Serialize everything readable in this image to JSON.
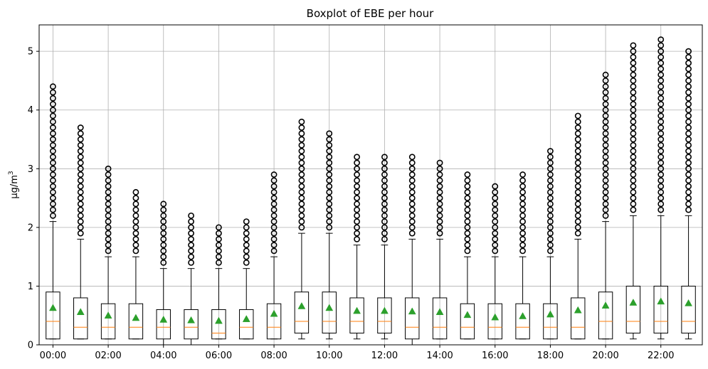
{
  "chart_data": {
    "type": "boxplot",
    "title": "Boxplot of EBE per hour",
    "ylabel_main": "µg/m",
    "ylabel_sup": "3",
    "ylim": [
      0,
      5.45
    ],
    "yticks": [
      0,
      1,
      2,
      3,
      4,
      5
    ],
    "grid": true,
    "colors": {
      "box": "#000000",
      "median": "#ff7f0e",
      "mean": "#2ca02c",
      "grid": "#b0b0b0",
      "flier": "#000000"
    },
    "categories": [
      "00:00",
      "01:00",
      "02:00",
      "03:00",
      "04:00",
      "05:00",
      "06:00",
      "07:00",
      "08:00",
      "09:00",
      "10:00",
      "11:00",
      "12:00",
      "13:00",
      "14:00",
      "15:00",
      "16:00",
      "17:00",
      "18:00",
      "19:00",
      "20:00",
      "21:00",
      "22:00",
      "23:00"
    ],
    "xtick_labels": [
      "00:00",
      "02:00",
      "04:00",
      "06:00",
      "08:00",
      "10:00",
      "12:00",
      "14:00",
      "16:00",
      "18:00",
      "20:00",
      "22:00"
    ],
    "xtick_indices": [
      0,
      2,
      4,
      6,
      8,
      10,
      12,
      14,
      16,
      18,
      20,
      22
    ],
    "boxes": [
      {
        "whislo": 0.1,
        "q1": 0.1,
        "med": 0.4,
        "q3": 0.9,
        "whishi": 2.1,
        "mean": 0.63,
        "flier_min": 2.2,
        "flier_max": 4.4
      },
      {
        "whislo": 0.1,
        "q1": 0.1,
        "med": 0.3,
        "q3": 0.8,
        "whishi": 1.8,
        "mean": 0.56,
        "flier_min": 1.9,
        "flier_max": 3.7
      },
      {
        "whislo": 0.1,
        "q1": 0.1,
        "med": 0.3,
        "q3": 0.7,
        "whishi": 1.5,
        "mean": 0.5,
        "flier_min": 1.6,
        "flier_max": 3.0
      },
      {
        "whislo": 0.1,
        "q1": 0.1,
        "med": 0.3,
        "q3": 0.7,
        "whishi": 1.5,
        "mean": 0.46,
        "flier_min": 1.6,
        "flier_max": 2.6
      },
      {
        "whislo": 0.0,
        "q1": 0.1,
        "med": 0.3,
        "q3": 0.6,
        "whishi": 1.3,
        "mean": 0.43,
        "flier_min": 1.4,
        "flier_max": 2.4
      },
      {
        "whislo": 0.0,
        "q1": 0.1,
        "med": 0.3,
        "q3": 0.6,
        "whishi": 1.3,
        "mean": 0.42,
        "flier_min": 1.4,
        "flier_max": 2.2
      },
      {
        "whislo": 0.1,
        "q1": 0.1,
        "med": 0.2,
        "q3": 0.6,
        "whishi": 1.3,
        "mean": 0.41,
        "flier_min": 1.4,
        "flier_max": 2.0
      },
      {
        "whislo": 0.1,
        "q1": 0.1,
        "med": 0.3,
        "q3": 0.6,
        "whishi": 1.3,
        "mean": 0.44,
        "flier_min": 1.4,
        "flier_max": 2.1
      },
      {
        "whislo": 0.1,
        "q1": 0.1,
        "med": 0.3,
        "q3": 0.7,
        "whishi": 1.5,
        "mean": 0.53,
        "flier_min": 1.6,
        "flier_max": 2.9
      },
      {
        "whislo": 0.1,
        "q1": 0.2,
        "med": 0.4,
        "q3": 0.9,
        "whishi": 1.9,
        "mean": 0.66,
        "flier_min": 2.0,
        "flier_max": 3.8
      },
      {
        "whislo": 0.1,
        "q1": 0.2,
        "med": 0.4,
        "q3": 0.9,
        "whishi": 1.9,
        "mean": 0.63,
        "flier_min": 2.0,
        "flier_max": 3.6
      },
      {
        "whislo": 0.1,
        "q1": 0.2,
        "med": 0.4,
        "q3": 0.8,
        "whishi": 1.7,
        "mean": 0.58,
        "flier_min": 1.8,
        "flier_max": 3.2
      },
      {
        "whislo": 0.1,
        "q1": 0.2,
        "med": 0.4,
        "q3": 0.8,
        "whishi": 1.7,
        "mean": 0.58,
        "flier_min": 1.8,
        "flier_max": 3.2
      },
      {
        "whislo": 0.0,
        "q1": 0.1,
        "med": 0.3,
        "q3": 0.8,
        "whishi": 1.8,
        "mean": 0.57,
        "flier_min": 1.9,
        "flier_max": 3.2
      },
      {
        "whislo": 0.1,
        "q1": 0.1,
        "med": 0.3,
        "q3": 0.8,
        "whishi": 1.8,
        "mean": 0.56,
        "flier_min": 1.9,
        "flier_max": 3.1
      },
      {
        "whislo": 0.1,
        "q1": 0.1,
        "med": 0.3,
        "q3": 0.7,
        "whishi": 1.5,
        "mean": 0.51,
        "flier_min": 1.6,
        "flier_max": 2.9
      },
      {
        "whislo": 0.1,
        "q1": 0.1,
        "med": 0.3,
        "q3": 0.7,
        "whishi": 1.5,
        "mean": 0.47,
        "flier_min": 1.6,
        "flier_max": 2.7
      },
      {
        "whislo": 0.1,
        "q1": 0.1,
        "med": 0.3,
        "q3": 0.7,
        "whishi": 1.5,
        "mean": 0.49,
        "flier_min": 1.6,
        "flier_max": 2.9
      },
      {
        "whislo": 0.1,
        "q1": 0.1,
        "med": 0.3,
        "q3": 0.7,
        "whishi": 1.5,
        "mean": 0.52,
        "flier_min": 1.6,
        "flier_max": 3.3
      },
      {
        "whislo": 0.1,
        "q1": 0.1,
        "med": 0.3,
        "q3": 0.8,
        "whishi": 1.8,
        "mean": 0.59,
        "flier_min": 1.9,
        "flier_max": 3.9
      },
      {
        "whislo": 0.1,
        "q1": 0.1,
        "med": 0.4,
        "q3": 0.9,
        "whishi": 2.1,
        "mean": 0.67,
        "flier_min": 2.2,
        "flier_max": 4.6
      },
      {
        "whislo": 0.1,
        "q1": 0.2,
        "med": 0.4,
        "q3": 1.0,
        "whishi": 2.2,
        "mean": 0.72,
        "flier_min": 2.3,
        "flier_max": 5.1
      },
      {
        "whislo": 0.1,
        "q1": 0.2,
        "med": 0.4,
        "q3": 1.0,
        "whishi": 2.2,
        "mean": 0.74,
        "flier_min": 2.3,
        "flier_max": 5.2
      },
      {
        "whislo": 0.1,
        "q1": 0.2,
        "med": 0.4,
        "q3": 1.0,
        "whishi": 2.2,
        "mean": 0.71,
        "flier_min": 2.3,
        "flier_max": 5.0
      }
    ]
  }
}
